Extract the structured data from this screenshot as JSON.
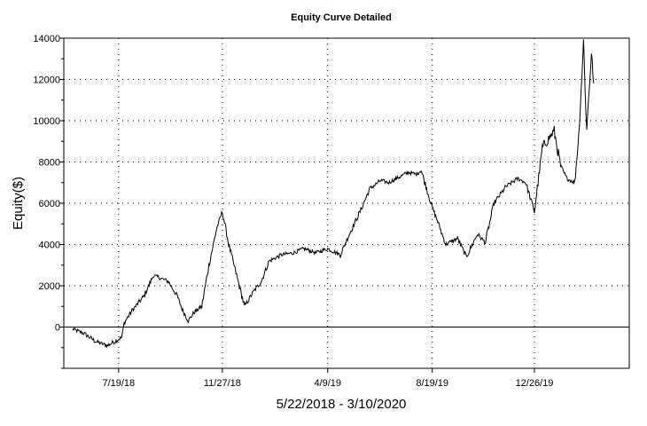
{
  "chart_data": {
    "type": "line",
    "title": "Equity Curve Detailed",
    "ylabel": "Equity($)",
    "xlabel": "5/22/2018 - 3/10/2020",
    "x_range": [
      "2018-05-22",
      "2020-03-10"
    ],
    "ylim": [
      -2000,
      14000
    ],
    "y_ticks": [
      0,
      2000,
      4000,
      6000,
      8000,
      10000,
      12000,
      14000
    ],
    "y_tick_labels": [
      "0",
      "2000",
      "4000",
      "6000",
      "8000",
      "10000",
      "12000",
      "14000"
    ],
    "x_ticks": [
      "2018-07-19",
      "2018-11-27",
      "2019-04-09",
      "2019-08-19",
      "2019-12-26"
    ],
    "x_tick_labels": [
      "7/19/18",
      "11/27/18",
      "4/9/19",
      "8/19/19",
      "12/26/19"
    ],
    "grid": true,
    "zero_line": true,
    "line_color": "#000000",
    "series": [
      {
        "x": [
          "2018-05-22",
          "2018-06-05",
          "2018-06-20",
          "2018-07-05",
          "2018-07-23",
          "2018-07-26",
          "2018-08-05",
          "2018-08-20",
          "2018-09-01",
          "2018-09-08",
          "2018-09-20",
          "2018-10-01",
          "2018-10-08",
          "2018-10-15",
          "2018-10-22",
          "2018-11-01",
          "2018-11-10",
          "2018-11-20",
          "2018-11-27",
          "2018-12-05",
          "2018-12-15",
          "2018-12-25",
          "2019-01-05",
          "2019-01-15",
          "2019-01-25",
          "2019-02-10",
          "2019-02-25",
          "2019-03-10",
          "2019-03-25",
          "2019-04-09",
          "2019-04-25",
          "2019-05-05",
          "2019-05-20",
          "2019-06-01",
          "2019-06-15",
          "2019-06-25",
          "2019-07-05",
          "2019-07-20",
          "2019-07-30",
          "2019-08-05",
          "2019-08-19",
          "2019-08-26",
          "2019-09-05",
          "2019-09-20",
          "2019-10-01",
          "2019-10-15",
          "2019-10-25",
          "2019-11-05",
          "2019-11-20",
          "2019-12-05",
          "2019-12-15",
          "2019-12-26",
          "2020-01-05",
          "2020-01-20",
          "2020-01-28",
          "2020-02-05",
          "2020-02-15",
          "2020-02-20",
          "2020-02-22",
          "2020-02-26",
          "2020-03-01",
          "2020-03-04",
          "2020-03-07",
          "2020-03-10"
        ],
        "y": [
          -100,
          -300,
          -700,
          -900,
          -500,
          200,
          800,
          1500,
          2500,
          2400,
          2200,
          1500,
          800,
          300,
          700,
          1000,
          3000,
          4800,
          5600,
          4000,
          2500,
          1000,
          1700,
          2200,
          3200,
          3500,
          3600,
          3800,
          3600,
          3800,
          3500,
          4400,
          5600,
          6700,
          7100,
          7000,
          7200,
          7500,
          7400,
          7600,
          5800,
          5100,
          4000,
          4300,
          3400,
          4500,
          4100,
          6000,
          6800,
          7200,
          7000,
          5600,
          8700,
          9500,
          7800,
          7200,
          7000,
          9300,
          10800,
          13800,
          9500,
          11500,
          13200,
          11800
        ]
      }
    ]
  }
}
